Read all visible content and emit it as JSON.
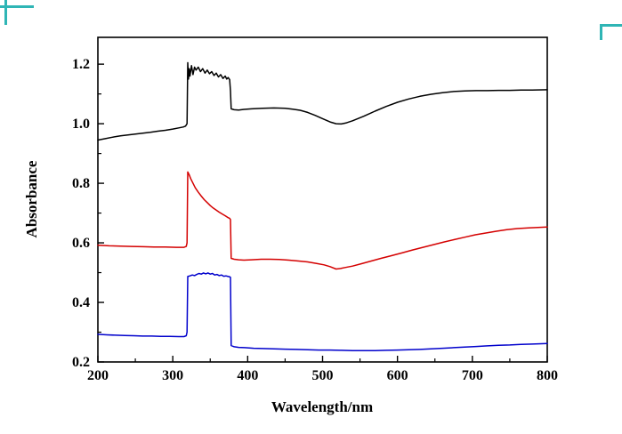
{
  "page": {
    "background_color": "#ffffff",
    "capture_mark_color": "#2fb5b5"
  },
  "chart_data": {
    "type": "line",
    "title": "",
    "xlabel": "Wavelength/nm",
    "ylabel": "Absorbance",
    "xlim": [
      200,
      800
    ],
    "ylim": [
      0.2,
      1.29
    ],
    "grid": false,
    "legend": "none",
    "x_ticks": [
      200,
      300,
      400,
      500,
      600,
      700,
      800
    ],
    "x_tick_labels": [
      "200",
      "300",
      "400",
      "500",
      "600",
      "700",
      "800"
    ],
    "x_minor_ticks": [
      250,
      350,
      450,
      550,
      650,
      750
    ],
    "y_ticks": [
      0.2,
      0.4,
      0.6,
      0.8,
      1.0,
      1.2
    ],
    "y_tick_labels": [
      "0.2",
      "0.4",
      "0.6",
      "0.8",
      "1.0",
      "1.2"
    ],
    "y_minor_ticks": [
      0.3,
      0.5,
      0.7,
      0.9,
      1.1
    ],
    "axis_color": "#000000",
    "series": [
      {
        "name": "black-spectrum",
        "color": "#000000",
        "points": [
          [
            200,
            0.945
          ],
          [
            210,
            0.95
          ],
          [
            220,
            0.955
          ],
          [
            230,
            0.959
          ],
          [
            240,
            0.962
          ],
          [
            250,
            0.965
          ],
          [
            260,
            0.968
          ],
          [
            270,
            0.971
          ],
          [
            280,
            0.975
          ],
          [
            290,
            0.978
          ],
          [
            300,
            0.982
          ],
          [
            308,
            0.986
          ],
          [
            314,
            0.989
          ],
          [
            317,
            0.992
          ],
          [
            319,
            1.0
          ],
          [
            320,
            1.205
          ],
          [
            321,
            1.15
          ],
          [
            322,
            1.185
          ],
          [
            323,
            1.16
          ],
          [
            325,
            1.195
          ],
          [
            327,
            1.165
          ],
          [
            329,
            1.19
          ],
          [
            331,
            1.18
          ],
          [
            334,
            1.19
          ],
          [
            337,
            1.175
          ],
          [
            340,
            1.185
          ],
          [
            343,
            1.17
          ],
          [
            346,
            1.18
          ],
          [
            349,
            1.168
          ],
          [
            352,
            1.175
          ],
          [
            355,
            1.162
          ],
          [
            358,
            1.17
          ],
          [
            361,
            1.157
          ],
          [
            364,
            1.165
          ],
          [
            367,
            1.152
          ],
          [
            370,
            1.16
          ],
          [
            372,
            1.15
          ],
          [
            374,
            1.155
          ],
          [
            376,
            1.148
          ],
          [
            377,
            1.11
          ],
          [
            378,
            1.05
          ],
          [
            382,
            1.047
          ],
          [
            388,
            1.046
          ],
          [
            395,
            1.048
          ],
          [
            405,
            1.05
          ],
          [
            420,
            1.052
          ],
          [
            435,
            1.053
          ],
          [
            450,
            1.052
          ],
          [
            460,
            1.049
          ],
          [
            470,
            1.045
          ],
          [
            480,
            1.038
          ],
          [
            490,
            1.028
          ],
          [
            500,
            1.017
          ],
          [
            510,
            1.006
          ],
          [
            518,
            1.0
          ],
          [
            525,
            0.999
          ],
          [
            532,
            1.003
          ],
          [
            540,
            1.01
          ],
          [
            555,
            1.025
          ],
          [
            570,
            1.042
          ],
          [
            585,
            1.058
          ],
          [
            600,
            1.072
          ],
          [
            615,
            1.083
          ],
          [
            630,
            1.092
          ],
          [
            645,
            1.099
          ],
          [
            660,
            1.104
          ],
          [
            675,
            1.108
          ],
          [
            690,
            1.11
          ],
          [
            705,
            1.111
          ],
          [
            720,
            1.111
          ],
          [
            735,
            1.112
          ],
          [
            750,
            1.112
          ],
          [
            765,
            1.113
          ],
          [
            780,
            1.113
          ],
          [
            800,
            1.114
          ]
        ]
      },
      {
        "name": "red-spectrum",
        "color": "#d40000",
        "points": [
          [
            200,
            0.592
          ],
          [
            215,
            0.59
          ],
          [
            230,
            0.589
          ],
          [
            245,
            0.588
          ],
          [
            260,
            0.587
          ],
          [
            275,
            0.586
          ],
          [
            290,
            0.586
          ],
          [
            305,
            0.585
          ],
          [
            315,
            0.585
          ],
          [
            318,
            0.588
          ],
          [
            319,
            0.6
          ],
          [
            320,
            0.838
          ],
          [
            322,
            0.828
          ],
          [
            324,
            0.815
          ],
          [
            327,
            0.8
          ],
          [
            330,
            0.785
          ],
          [
            334,
            0.77
          ],
          [
            338,
            0.757
          ],
          [
            342,
            0.745
          ],
          [
            346,
            0.735
          ],
          [
            350,
            0.725
          ],
          [
            354,
            0.717
          ],
          [
            358,
            0.71
          ],
          [
            362,
            0.703
          ],
          [
            366,
            0.697
          ],
          [
            370,
            0.691
          ],
          [
            373,
            0.686
          ],
          [
            376,
            0.682
          ],
          [
            377,
            0.678
          ],
          [
            378,
            0.548
          ],
          [
            382,
            0.545
          ],
          [
            388,
            0.543
          ],
          [
            395,
            0.542
          ],
          [
            405,
            0.543
          ],
          [
            418,
            0.545
          ],
          [
            430,
            0.545
          ],
          [
            442,
            0.544
          ],
          [
            455,
            0.542
          ],
          [
            468,
            0.539
          ],
          [
            480,
            0.536
          ],
          [
            492,
            0.531
          ],
          [
            502,
            0.526
          ],
          [
            510,
            0.52
          ],
          [
            518,
            0.512
          ],
          [
            524,
            0.514
          ],
          [
            530,
            0.517
          ],
          [
            540,
            0.522
          ],
          [
            552,
            0.53
          ],
          [
            565,
            0.539
          ],
          [
            578,
            0.548
          ],
          [
            592,
            0.557
          ],
          [
            606,
            0.566
          ],
          [
            620,
            0.576
          ],
          [
            634,
            0.585
          ],
          [
            648,
            0.594
          ],
          [
            662,
            0.603
          ],
          [
            676,
            0.611
          ],
          [
            690,
            0.619
          ],
          [
            704,
            0.627
          ],
          [
            718,
            0.633
          ],
          [
            732,
            0.639
          ],
          [
            746,
            0.644
          ],
          [
            760,
            0.648
          ],
          [
            775,
            0.65
          ],
          [
            800,
            0.653
          ]
        ]
      },
      {
        "name": "blue-spectrum",
        "color": "#0000cc",
        "points": [
          [
            200,
            0.293
          ],
          [
            212,
            0.291
          ],
          [
            224,
            0.29
          ],
          [
            236,
            0.289
          ],
          [
            248,
            0.288
          ],
          [
            260,
            0.287
          ],
          [
            272,
            0.287
          ],
          [
            284,
            0.286
          ],
          [
            296,
            0.286
          ],
          [
            308,
            0.285
          ],
          [
            315,
            0.285
          ],
          [
            318,
            0.288
          ],
          [
            319,
            0.3
          ],
          [
            320,
            0.487
          ],
          [
            323,
            0.489
          ],
          [
            326,
            0.492
          ],
          [
            329,
            0.49
          ],
          [
            332,
            0.494
          ],
          [
            335,
            0.497
          ],
          [
            338,
            0.495
          ],
          [
            341,
            0.499
          ],
          [
            344,
            0.496
          ],
          [
            347,
            0.499
          ],
          [
            350,
            0.495
          ],
          [
            353,
            0.497
          ],
          [
            356,
            0.492
          ],
          [
            359,
            0.494
          ],
          [
            362,
            0.49
          ],
          [
            365,
            0.492
          ],
          [
            368,
            0.488
          ],
          [
            371,
            0.489
          ],
          [
            374,
            0.487
          ],
          [
            376,
            0.486
          ],
          [
            377,
            0.484
          ],
          [
            378,
            0.255
          ],
          [
            382,
            0.251
          ],
          [
            388,
            0.249
          ],
          [
            396,
            0.248
          ],
          [
            408,
            0.246
          ],
          [
            420,
            0.245
          ],
          [
            435,
            0.244
          ],
          [
            450,
            0.243
          ],
          [
            465,
            0.242
          ],
          [
            480,
            0.241
          ],
          [
            495,
            0.24
          ],
          [
            510,
            0.24
          ],
          [
            525,
            0.239
          ],
          [
            540,
            0.238
          ],
          [
            555,
            0.238
          ],
          [
            570,
            0.238
          ],
          [
            585,
            0.239
          ],
          [
            600,
            0.24
          ],
          [
            615,
            0.241
          ],
          [
            630,
            0.242
          ],
          [
            645,
            0.244
          ],
          [
            660,
            0.246
          ],
          [
            675,
            0.248
          ],
          [
            690,
            0.25
          ],
          [
            705,
            0.252
          ],
          [
            720,
            0.254
          ],
          [
            735,
            0.256
          ],
          [
            750,
            0.257
          ],
          [
            765,
            0.259
          ],
          [
            780,
            0.26
          ],
          [
            800,
            0.262
          ]
        ]
      }
    ]
  }
}
